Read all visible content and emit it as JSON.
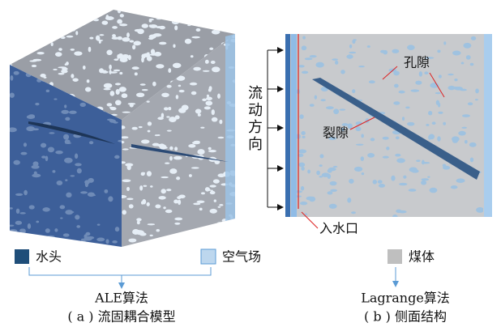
{
  "panel_a": {
    "legend": [
      "水头",
      "空气场"
    ],
    "algorithm": "ALE算法",
    "caption": "( a ) 流固耦合模型"
  },
  "panel_b": {
    "flow_direction": "流动方向",
    "pore": "孔隙",
    "crack": "裂隙",
    "inlet": "入水口",
    "legend": [
      "煤体"
    ],
    "algorithm": "Lagrange算法",
    "caption": "( b ) 侧面结构"
  }
}
